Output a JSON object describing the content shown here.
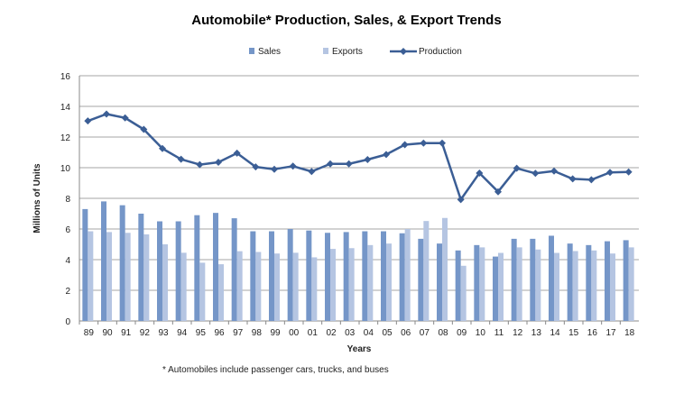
{
  "chart_data": {
    "type": "bar+line",
    "title": "Automobile* Production, Sales, & Export Trends",
    "xlabel": "Years",
    "ylabel": "Millions of Units",
    "ylim": [
      0,
      16
    ],
    "yticks": [
      0,
      2,
      4,
      6,
      8,
      10,
      12,
      14,
      16
    ],
    "grid": true,
    "legend_position": "top",
    "categories": [
      "89",
      "90",
      "91",
      "92",
      "93",
      "94",
      "95",
      "96",
      "97",
      "98",
      "99",
      "00",
      "01",
      "02",
      "03",
      "04",
      "05",
      "06",
      "07",
      "08",
      "09",
      "10",
      "11",
      "12",
      "13",
      "14",
      "15",
      "16",
      "17",
      "18"
    ],
    "series": [
      {
        "name": "Sales",
        "kind": "bar",
        "color": "#7596c8",
        "values": [
          7.3,
          7.8,
          7.55,
          7.0,
          6.5,
          6.5,
          6.9,
          7.05,
          6.7,
          5.85,
          5.85,
          6.0,
          5.9,
          5.75,
          5.8,
          5.85,
          5.85,
          5.72,
          5.36,
          5.05,
          4.6,
          4.95,
          4.2,
          5.36,
          5.36,
          5.56,
          5.05,
          4.95,
          5.2,
          5.27
        ]
      },
      {
        "name": "Exports",
        "kind": "bar",
        "color": "#b5c5e2",
        "values": [
          5.85,
          5.8,
          5.75,
          5.65,
          5.0,
          4.45,
          3.8,
          3.7,
          4.55,
          4.5,
          4.4,
          4.45,
          4.15,
          4.7,
          4.75,
          4.95,
          5.05,
          6.0,
          6.52,
          6.72,
          3.6,
          4.8,
          4.44,
          4.8,
          4.66,
          4.44,
          4.56,
          4.6,
          4.4,
          4.8
        ]
      },
      {
        "name": "Production",
        "kind": "line",
        "color": "#3b5e95",
        "values": [
          13.05,
          13.5,
          13.25,
          12.5,
          11.25,
          10.55,
          10.2,
          10.35,
          10.95,
          10.05,
          9.9,
          10.1,
          9.75,
          10.25,
          10.25,
          10.53,
          10.86,
          11.5,
          11.6,
          11.6,
          7.92,
          9.65,
          8.43,
          9.96,
          9.63,
          9.78,
          9.27,
          9.21,
          9.69,
          9.72
        ]
      }
    ],
    "footnote": "* Automobiles include passenger cars, trucks, and buses"
  }
}
